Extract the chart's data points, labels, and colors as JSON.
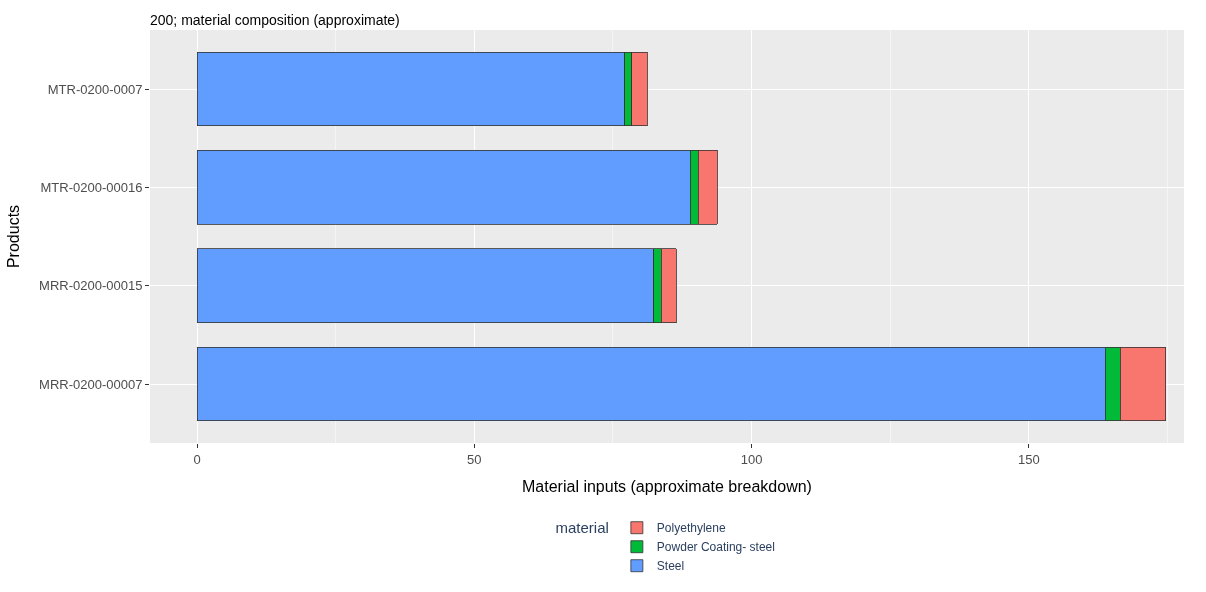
{
  "chart_data": {
    "type": "bar",
    "orientation": "horizontal",
    "stacked": true,
    "title": "200; material composition (approximate)",
    "xlabel": "Material inputs (approximate breakdown)",
    "ylabel": "Products",
    "legend_title": "material",
    "legend": "bottom",
    "grid": true,
    "categories": [
      "MTR-0200-0007",
      "MTR-0200-00016",
      "MRR-0200-00015",
      "MRR-0200-00007"
    ],
    "xlim": [
      -8.5,
      178
    ],
    "xticks": [
      0,
      50,
      100,
      150
    ],
    "series": [
      {
        "name": "Steel",
        "color": "#619cff",
        "values": [
          77.1,
          88.9,
          82.4,
          163.8
        ]
      },
      {
        "name": "Powder Coating- steel",
        "color": "#00ba38",
        "values": [
          1.3,
          1.5,
          1.3,
          2.7
        ]
      },
      {
        "name": "Polyethylene",
        "color": "#f8766d",
        "values": [
          2.8,
          3.4,
          2.7,
          8.2
        ]
      }
    ]
  }
}
